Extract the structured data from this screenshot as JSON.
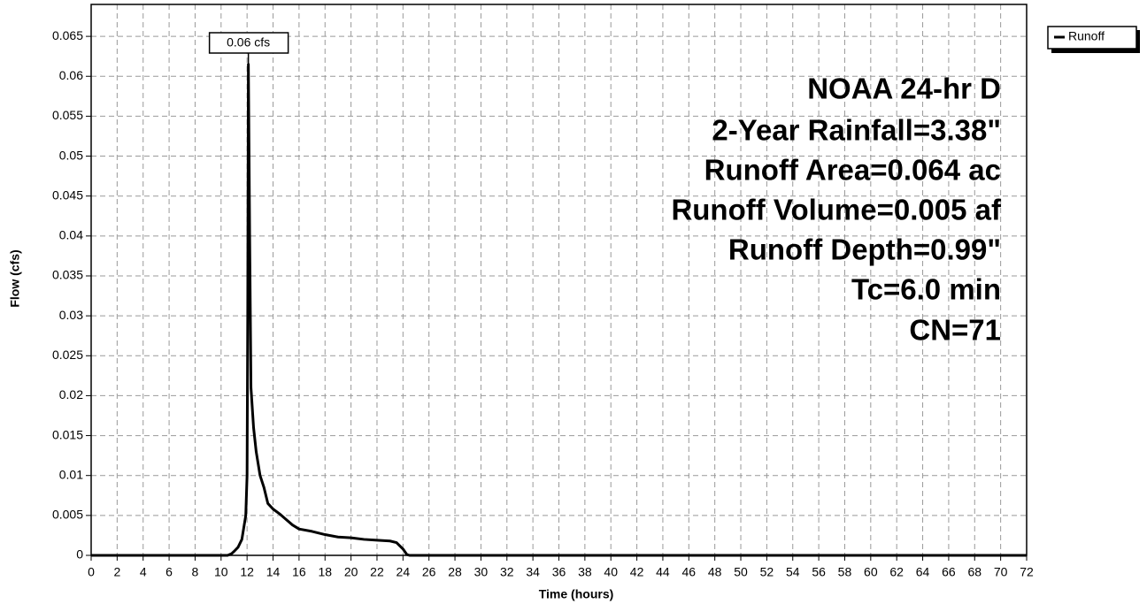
{
  "chart_data": {
    "type": "line",
    "xlabel": "Time  (hours)",
    "ylabel": "Flow  (cfs)",
    "annotations": [
      "NOAA 24-hr D",
      "2-Year Rainfall=3.38\"",
      "Runoff Area=0.064 ac",
      "Runoff Volume=0.005 af",
      "Runoff Depth=0.99\"",
      "Tc=6.0 min",
      "CN=71"
    ],
    "peak_label": "0.06 cfs",
    "x": [
      0,
      10.5,
      10.8,
      11,
      11.3,
      11.6,
      11.9,
      12.0,
      12.05,
      12.1,
      12.2,
      12.3,
      12.5,
      12.7,
      13,
      13.3,
      13.6,
      14,
      14.5,
      15,
      15.5,
      16,
      17,
      18,
      19,
      20,
      21,
      22,
      23,
      23.5,
      24,
      24.3,
      24.5,
      72
    ],
    "series": [
      {
        "name": "Runoff",
        "color": "#000000",
        "values": [
          0,
          0,
          0.0002,
          0.0005,
          0.001,
          0.002,
          0.005,
          0.01,
          0.03,
          0.0615,
          0.04,
          0.021,
          0.016,
          0.013,
          0.01,
          0.0085,
          0.0065,
          0.0058,
          0.0052,
          0.0045,
          0.0038,
          0.0033,
          0.003,
          0.0026,
          0.0023,
          0.0022,
          0.002,
          0.0019,
          0.0018,
          0.0016,
          0.0008,
          0.0001,
          0,
          0
        ]
      }
    ],
    "xlim": [
      0,
      72
    ],
    "ylim": [
      0,
      0.069
    ],
    "xticks": [
      0,
      2,
      4,
      6,
      8,
      10,
      12,
      14,
      16,
      18,
      20,
      22,
      24,
      26,
      28,
      30,
      32,
      34,
      36,
      38,
      40,
      42,
      44,
      46,
      48,
      50,
      52,
      54,
      56,
      58,
      60,
      62,
      64,
      66,
      68,
      70,
      72
    ],
    "yticks": [
      0,
      0.005,
      0.01,
      0.015,
      0.02,
      0.025,
      0.03,
      0.035,
      0.04,
      0.045,
      0.05,
      0.055,
      0.06,
      0.065
    ],
    "grid": true,
    "legend": "top-right"
  }
}
